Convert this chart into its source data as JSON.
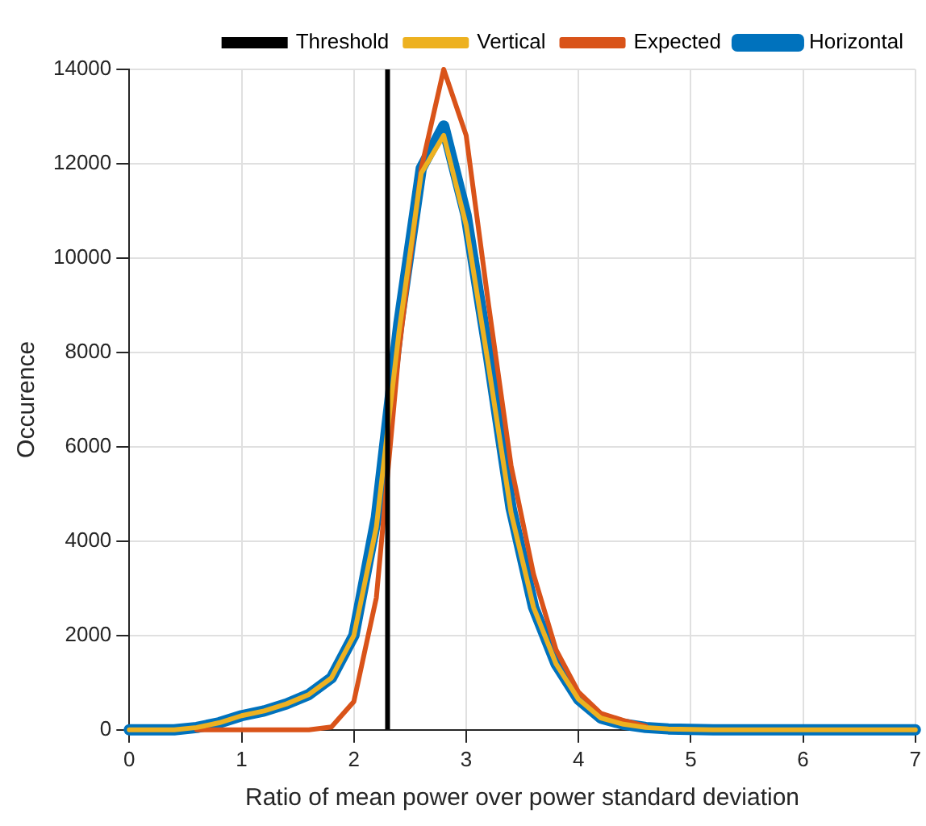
{
  "chart_data": {
    "type": "line",
    "xlabel": "Ratio of mean power over power standard deviation",
    "ylabel": "Occurence",
    "x": [
      0,
      0.2,
      0.4,
      0.6,
      0.8,
      1.0,
      1.2,
      1.4,
      1.6,
      1.8,
      2.0,
      2.2,
      2.4,
      2.6,
      2.8,
      3.0,
      3.2,
      3.4,
      3.6,
      3.8,
      4.0,
      4.2,
      4.4,
      4.6,
      4.8,
      5.0,
      5.2,
      5.4,
      5.6,
      5.8,
      6.0,
      6.2,
      6.4,
      6.6,
      6.8,
      7.0
    ],
    "series": [
      {
        "name": "Horizontal",
        "color": "#0072bd",
        "values": [
          0,
          0,
          0,
          50,
          150,
          300,
          400,
          550,
          750,
          1100,
          2000,
          4500,
          8600,
          11900,
          12800,
          10900,
          7900,
          4700,
          2600,
          1400,
          650,
          250,
          120,
          50,
          20,
          10,
          0,
          0,
          0,
          0,
          0,
          0,
          0,
          0,
          0,
          0
        ]
      },
      {
        "name": "Vertical",
        "color": "#edb120",
        "values": [
          0,
          0,
          0,
          50,
          150,
          300,
          400,
          550,
          750,
          1100,
          2000,
          4300,
          8400,
          11800,
          12600,
          10700,
          7700,
          4600,
          2600,
          1400,
          650,
          250,
          120,
          50,
          20,
          10,
          0,
          0,
          0,
          0,
          0,
          0,
          0,
          0,
          0,
          0
        ]
      },
      {
        "name": "Expected",
        "color": "#d95319",
        "values": [
          null,
          null,
          null,
          0,
          0,
          0,
          0,
          0,
          0,
          60,
          600,
          2800,
          8000,
          11900,
          14000,
          12600,
          9000,
          5600,
          3300,
          1700,
          800,
          350,
          200,
          80,
          null,
          null,
          null,
          null,
          null,
          null,
          null,
          null,
          null,
          null,
          null,
          null
        ]
      }
    ],
    "ref_lines": [
      {
        "axis": "x",
        "value": 2.3,
        "label": "Threshold",
        "color": "#000000"
      }
    ],
    "xlim": [
      0,
      7
    ],
    "xticks": [
      0,
      1,
      2,
      3,
      4,
      5,
      6,
      7
    ],
    "ylim": [
      0,
      14000
    ],
    "yticks": [
      0,
      2000,
      4000,
      6000,
      8000,
      10000,
      12000,
      14000
    ],
    "grid": true,
    "legend": "top right",
    "marker": "none",
    "line_style": "solid"
  }
}
